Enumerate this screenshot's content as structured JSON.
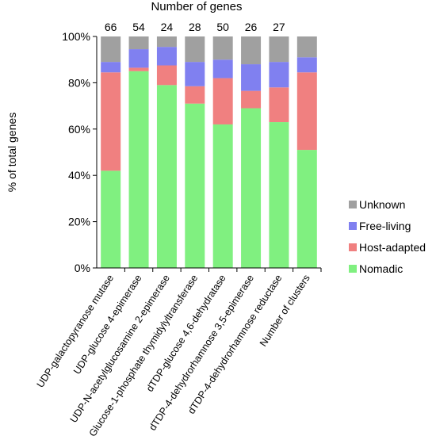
{
  "chart_data": {
    "type": "bar",
    "stacked": true,
    "title": "Number of genes",
    "ylabel": "% of total genes",
    "ylim": [
      0,
      100
    ],
    "yticks": [
      "0%",
      "20%",
      "40%",
      "60%",
      "80%",
      "100%"
    ],
    "categories": [
      "UDP-galactopyranose mutase",
      "UDP-glucose 4-epimerase",
      "UDP-N-acetylglucosamine 2-epimerase",
      "Glucose-1-phosphate thymidylyltransferase",
      "dTDP-glucose 4,6-dehydratase",
      "dTDP-4-dehydrorhamnose 3,5-epimerase",
      "dTDP-4-dehydrorhamnose reductase",
      "Number of clusters"
    ],
    "counts": [
      "66",
      "54",
      "24",
      "28",
      "50",
      "26",
      "27",
      ""
    ],
    "series": [
      {
        "name": "Nomadic",
        "color": "#80f080",
        "values": [
          42,
          85,
          79,
          71,
          62,
          69,
          63,
          51
        ]
      },
      {
        "name": "Host-adapted",
        "color": "#f08080",
        "values": [
          42.5,
          1.5,
          8.5,
          7.5,
          20,
          7.5,
          15,
          33.5
        ]
      },
      {
        "name": "Free-living",
        "color": "#8080f0",
        "values": [
          4.5,
          8,
          8,
          10.5,
          8,
          11.5,
          11,
          6.5
        ]
      },
      {
        "name": "Unknown",
        "color": "#a0a0a0",
        "values": [
          11,
          5.5,
          4.5,
          11,
          10,
          12,
          11,
          9
        ]
      }
    ],
    "legend": [
      "Unknown",
      "Free-living",
      "Host-adapted",
      "Nomadic"
    ],
    "legend_position": "right",
    "grid": false
  }
}
